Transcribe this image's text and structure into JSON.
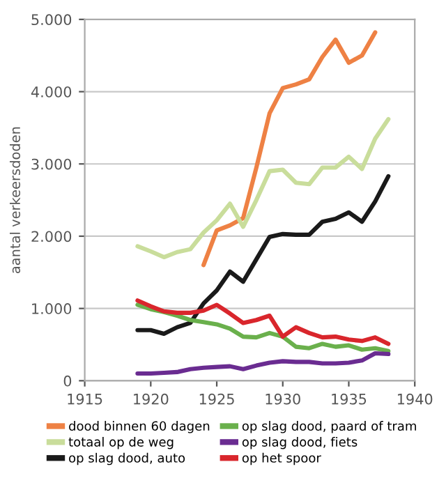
{
  "chart_data": {
    "type": "line",
    "ylabel": "aantal verkeersdoden",
    "x": [
      1919,
      1920,
      1921,
      1922,
      1923,
      1924,
      1925,
      1926,
      1927,
      1928,
      1929,
      1930,
      1931,
      1932,
      1933,
      1934,
      1935,
      1936,
      1937,
      1938
    ],
    "series": [
      {
        "name": "dood binnen 60 dagen",
        "color": "#ee8144",
        "values": [
          null,
          null,
          null,
          null,
          null,
          1600,
          2080,
          2150,
          2250,
          2950,
          3700,
          4050,
          4100,
          4170,
          4480,
          4720,
          4400,
          4500,
          4820,
          null
        ]
      },
      {
        "name": "totaal op de weg",
        "color": "#c9dd9b",
        "values": [
          1860,
          1790,
          1710,
          1780,
          1820,
          2050,
          2220,
          2450,
          2130,
          2500,
          2900,
          2920,
          2740,
          2720,
          2950,
          2950,
          3100,
          2930,
          3350,
          3620
        ]
      },
      {
        "name": "op slag dood, auto",
        "color": "#1a1a1a",
        "values": [
          700,
          700,
          650,
          740,
          800,
          1070,
          1250,
          1510,
          1370,
          1680,
          1990,
          2030,
          2020,
          2020,
          2200,
          2240,
          2330,
          2200,
          2480,
          2830
        ]
      },
      {
        "name": "op slag dood, paard of tram",
        "color": "#6ab04c",
        "values": [
          1050,
          990,
          950,
          900,
          840,
          810,
          780,
          720,
          610,
          600,
          660,
          610,
          470,
          450,
          510,
          470,
          490,
          430,
          450,
          410
        ]
      },
      {
        "name": "op slag dood, fiets",
        "color": "#6a2c91",
        "values": [
          100,
          100,
          110,
          120,
          160,
          180,
          190,
          200,
          160,
          210,
          250,
          270,
          260,
          260,
          240,
          240,
          250,
          280,
          380,
          370
        ]
      },
      {
        "name": "op het spoor",
        "color": "#d9262c",
        "values": [
          1110,
          1030,
          960,
          940,
          940,
          970,
          1050,
          930,
          800,
          840,
          900,
          610,
          740,
          660,
          600,
          610,
          570,
          550,
          600,
          510
        ]
      }
    ],
    "xlim": [
      1915,
      1940
    ],
    "xticks": [
      1915,
      1920,
      1925,
      1930,
      1935,
      1940
    ],
    "ylim": [
      0,
      5000
    ],
    "yticks": [
      0,
      {
        "value": 1000,
        "label": "1.000"
      },
      {
        "value": 2000,
        "label": "2.000"
      },
      {
        "value": 3000,
        "label": "3.000"
      },
      {
        "value": 4000,
        "label": "4.000"
      },
      {
        "value": 5000,
        "label": "5.000"
      }
    ],
    "grid": "y",
    "legend": "bottom",
    "marker": "none",
    "line_style": "solid"
  }
}
